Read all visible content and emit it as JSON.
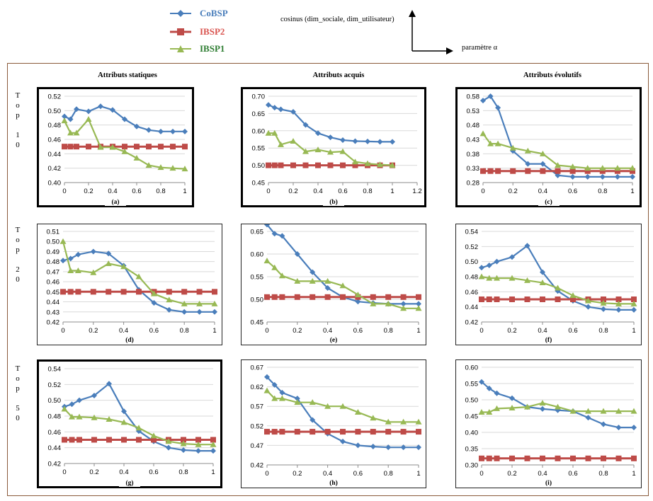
{
  "legend": [
    {
      "name": "CoBSP",
      "color": "#4a7ebb",
      "marker": "diamond"
    },
    {
      "name": "IBSP2",
      "color": "#be4b48",
      "marker": "square"
    },
    {
      "name": "IBSP1",
      "color": "#98b954",
      "marker": "triangle"
    }
  ],
  "axis_hint": {
    "y_label": "cosinus (dim_sociale, dim_utilisateur)",
    "x_label": "paramètre α"
  },
  "column_headers": [
    "Attributs statiques",
    "Attributs acquis",
    "Attributs évolutifs"
  ],
  "row_labels": [
    [
      "T",
      "o",
      "p",
      "",
      "1",
      "0"
    ],
    [
      "T",
      "o",
      "p",
      "",
      "2",
      "0"
    ],
    [
      "T",
      "o",
      "p",
      "",
      "5",
      "0"
    ]
  ],
  "chart_data": [
    {
      "type": "line",
      "label": "(a)",
      "x": [
        0,
        0.05,
        0.1,
        0.2,
        0.3,
        0.4,
        0.5,
        0.6,
        0.7,
        0.8,
        0.9,
        1
      ],
      "xticks": [
        0,
        0.2,
        0.4,
        0.6,
        0.8,
        1
      ],
      "ylim": [
        0.4,
        0.52
      ],
      "yticks": [
        0.4,
        0.42,
        0.44,
        0.46,
        0.48,
        0.5,
        0.52
      ],
      "ydec": 2,
      "series": [
        {
          "name": "CoBSP",
          "values": [
            0.492,
            0.488,
            0.502,
            0.499,
            0.506,
            0.501,
            0.488,
            0.478,
            0.473,
            0.471,
            0.471,
            0.471
          ]
        },
        {
          "name": "IBSP2",
          "values": [
            0.45,
            0.45,
            0.45,
            0.45,
            0.45,
            0.45,
            0.45,
            0.45,
            0.45,
            0.45,
            0.45,
            0.45
          ]
        },
        {
          "name": "IBSP1",
          "values": [
            0.486,
            0.469,
            0.469,
            0.488,
            0.449,
            0.449,
            0.443,
            0.434,
            0.424,
            0.421,
            0.42,
            0.419
          ]
        }
      ]
    },
    {
      "type": "line",
      "label": "(b)",
      "x": [
        0,
        0.05,
        0.1,
        0.2,
        0.3,
        0.4,
        0.5,
        0.6,
        0.7,
        0.8,
        0.9,
        1
      ],
      "xticks": [
        0,
        0.2,
        0.4,
        0.6,
        0.8,
        1,
        1.2
      ],
      "ylim": [
        0.45,
        0.7
      ],
      "yticks": [
        0.45,
        0.5,
        0.55,
        0.6,
        0.65,
        0.7
      ],
      "ydec": 2,
      "series": [
        {
          "name": "CoBSP",
          "values": [
            0.675,
            0.667,
            0.662,
            0.655,
            0.617,
            0.593,
            0.581,
            0.573,
            0.57,
            0.569,
            0.568,
            0.568
          ]
        },
        {
          "name": "IBSP2",
          "values": [
            0.5,
            0.5,
            0.5,
            0.5,
            0.5,
            0.5,
            0.5,
            0.5,
            0.5,
            0.5,
            0.5,
            0.5
          ]
        },
        {
          "name": "IBSP1",
          "values": [
            0.593,
            0.593,
            0.56,
            0.57,
            0.54,
            0.545,
            0.538,
            0.54,
            0.51,
            0.505,
            0.502,
            0.5
          ]
        }
      ]
    },
    {
      "type": "line",
      "label": "(c)",
      "x": [
        0,
        0.05,
        0.1,
        0.2,
        0.3,
        0.4,
        0.5,
        0.6,
        0.7,
        0.8,
        0.9,
        1
      ],
      "xticks": [
        0,
        0.2,
        0.4,
        0.6,
        0.8,
        1
      ],
      "ylim": [
        0.28,
        0.58
      ],
      "yticks": [
        0.28,
        0.33,
        0.38,
        0.43,
        0.48,
        0.53,
        0.58
      ],
      "ydec": 2,
      "series": [
        {
          "name": "CoBSP",
          "values": [
            0.565,
            0.58,
            0.54,
            0.39,
            0.345,
            0.345,
            0.305,
            0.3,
            0.3,
            0.3,
            0.3,
            0.3
          ]
        },
        {
          "name": "IBSP2",
          "values": [
            0.32,
            0.32,
            0.32,
            0.32,
            0.32,
            0.32,
            0.32,
            0.32,
            0.32,
            0.32,
            0.32,
            0.32
          ]
        },
        {
          "name": "IBSP1",
          "values": [
            0.45,
            0.415,
            0.415,
            0.4,
            0.39,
            0.38,
            0.34,
            0.335,
            0.33,
            0.33,
            0.33,
            0.33
          ]
        }
      ]
    },
    {
      "type": "line",
      "label": "(d)",
      "x": [
        0,
        0.05,
        0.1,
        0.2,
        0.3,
        0.4,
        0.5,
        0.6,
        0.7,
        0.8,
        0.9,
        1
      ],
      "xticks": [
        0,
        0.2,
        0.4,
        0.6,
        0.8,
        1
      ],
      "ylim": [
        0.42,
        0.51
      ],
      "yticks": [
        0.42,
        0.43,
        0.44,
        0.45,
        0.46,
        0.47,
        0.48,
        0.49,
        0.5,
        0.51
      ],
      "ydec": 2,
      "series": [
        {
          "name": "CoBSP",
          "values": [
            0.481,
            0.483,
            0.487,
            0.49,
            0.488,
            0.476,
            0.452,
            0.439,
            0.432,
            0.43,
            0.43,
            0.43
          ]
        },
        {
          "name": "IBSP2",
          "values": [
            0.45,
            0.45,
            0.45,
            0.45,
            0.45,
            0.45,
            0.45,
            0.45,
            0.45,
            0.45,
            0.45,
            0.45
          ]
        },
        {
          "name": "IBSP1",
          "values": [
            0.5,
            0.471,
            0.471,
            0.469,
            0.478,
            0.475,
            0.465,
            0.448,
            0.442,
            0.438,
            0.438,
            0.438
          ]
        }
      ]
    },
    {
      "type": "line",
      "label": "(e)",
      "x": [
        0,
        0.05,
        0.1,
        0.2,
        0.3,
        0.4,
        0.5,
        0.6,
        0.7,
        0.8,
        0.9,
        1
      ],
      "xticks": [
        0,
        0.2,
        0.4,
        0.6,
        0.8,
        1
      ],
      "ylim": [
        0.45,
        0.65
      ],
      "yticks": [
        0.45,
        0.5,
        0.55,
        0.6,
        0.65
      ],
      "ydec": 2,
      "series": [
        {
          "name": "CoBSP",
          "values": [
            0.665,
            0.645,
            0.64,
            0.6,
            0.56,
            0.525,
            0.505,
            0.495,
            0.492,
            0.49,
            0.49,
            0.49
          ]
        },
        {
          "name": "IBSP2",
          "values": [
            0.505,
            0.505,
            0.505,
            0.505,
            0.505,
            0.505,
            0.505,
            0.505,
            0.505,
            0.505,
            0.505,
            0.505
          ]
        },
        {
          "name": "IBSP1",
          "values": [
            0.585,
            0.57,
            0.552,
            0.54,
            0.54,
            0.54,
            0.53,
            0.51,
            0.49,
            0.49,
            0.48,
            0.48
          ]
        }
      ]
    },
    {
      "type": "line",
      "label": "(f)",
      "x": [
        0,
        0.05,
        0.1,
        0.2,
        0.3,
        0.4,
        0.5,
        0.6,
        0.7,
        0.8,
        0.9,
        1
      ],
      "xticks": [
        0,
        0.2,
        0.4,
        0.6,
        0.8,
        1
      ],
      "ylim": [
        0.42,
        0.54
      ],
      "yticks": [
        0.42,
        0.44,
        0.46,
        0.48,
        0.5,
        0.52,
        0.54
      ],
      "ydec": 2,
      "series": [
        {
          "name": "CoBSP",
          "values": [
            0.492,
            0.495,
            0.5,
            0.506,
            0.521,
            0.486,
            0.461,
            0.448,
            0.44,
            0.437,
            0.436,
            0.436
          ]
        },
        {
          "name": "IBSP2",
          "values": [
            0.45,
            0.45,
            0.45,
            0.45,
            0.45,
            0.45,
            0.45,
            0.45,
            0.45,
            0.45,
            0.45,
            0.45
          ]
        },
        {
          "name": "IBSP1",
          "values": [
            0.48,
            0.478,
            0.478,
            0.478,
            0.475,
            0.472,
            0.465,
            0.455,
            0.448,
            0.445,
            0.444,
            0.444
          ]
        }
      ]
    },
    {
      "type": "line",
      "label": "(g)",
      "x": [
        0,
        0.05,
        0.1,
        0.2,
        0.3,
        0.4,
        0.5,
        0.6,
        0.7,
        0.8,
        0.9,
        1
      ],
      "xticks": [
        0,
        0.2,
        0.4,
        0.6,
        0.8,
        1
      ],
      "ylim": [
        0.42,
        0.54
      ],
      "yticks": [
        0.42,
        0.44,
        0.46,
        0.48,
        0.5,
        0.52,
        0.54
      ],
      "ydec": 2,
      "series": [
        {
          "name": "CoBSP",
          "values": [
            0.492,
            0.495,
            0.5,
            0.506,
            0.521,
            0.486,
            0.461,
            0.448,
            0.44,
            0.437,
            0.436,
            0.436
          ]
        },
        {
          "name": "IBSP2",
          "values": [
            0.45,
            0.45,
            0.45,
            0.45,
            0.45,
            0.45,
            0.45,
            0.45,
            0.45,
            0.45,
            0.45,
            0.45
          ]
        },
        {
          "name": "IBSP1",
          "values": [
            0.489,
            0.479,
            0.479,
            0.478,
            0.476,
            0.472,
            0.465,
            0.455,
            0.448,
            0.445,
            0.444,
            0.444
          ]
        }
      ]
    },
    {
      "type": "line",
      "label": "(h)",
      "x": [
        0,
        0.05,
        0.1,
        0.2,
        0.3,
        0.4,
        0.5,
        0.6,
        0.7,
        0.8,
        0.9,
        1
      ],
      "xticks": [
        0,
        0.2,
        0.4,
        0.6,
        0.8,
        1
      ],
      "ylim": [
        0.42,
        0.67
      ],
      "yticks": [
        0.42,
        0.47,
        0.52,
        0.57,
        0.62,
        0.67
      ],
      "ydec": 2,
      "series": [
        {
          "name": "CoBSP",
          "values": [
            0.645,
            0.625,
            0.605,
            0.59,
            0.535,
            0.5,
            0.48,
            0.47,
            0.467,
            0.465,
            0.465,
            0.465
          ]
        },
        {
          "name": "IBSP2",
          "values": [
            0.505,
            0.505,
            0.505,
            0.505,
            0.505,
            0.505,
            0.505,
            0.505,
            0.505,
            0.505,
            0.505,
            0.505
          ]
        },
        {
          "name": "IBSP1",
          "values": [
            0.61,
            0.59,
            0.59,
            0.58,
            0.58,
            0.57,
            0.57,
            0.555,
            0.54,
            0.53,
            0.53,
            0.53
          ]
        }
      ]
    },
    {
      "type": "line",
      "label": "(i)",
      "x": [
        0,
        0.05,
        0.1,
        0.2,
        0.3,
        0.4,
        0.5,
        0.6,
        0.7,
        0.8,
        0.9,
        1
      ],
      "xticks": [
        0,
        0.2,
        0.4,
        0.6,
        0.8,
        1
      ],
      "ylim": [
        0.3,
        0.6
      ],
      "yticks": [
        0.3,
        0.35,
        0.4,
        0.45,
        0.5,
        0.55,
        0.6
      ],
      "ydec": 2,
      "series": [
        {
          "name": "CoBSP",
          "values": [
            0.555,
            0.535,
            0.52,
            0.505,
            0.478,
            0.472,
            0.468,
            0.465,
            0.445,
            0.425,
            0.415,
            0.415
          ]
        },
        {
          "name": "IBSP2",
          "values": [
            0.32,
            0.32,
            0.32,
            0.32,
            0.32,
            0.32,
            0.32,
            0.32,
            0.32,
            0.32,
            0.32,
            0.32
          ]
        },
        {
          "name": "IBSP1",
          "values": [
            0.462,
            0.462,
            0.473,
            0.475,
            0.478,
            0.49,
            0.478,
            0.465,
            0.465,
            0.465,
            0.465,
            0.465
          ]
        }
      ]
    }
  ]
}
